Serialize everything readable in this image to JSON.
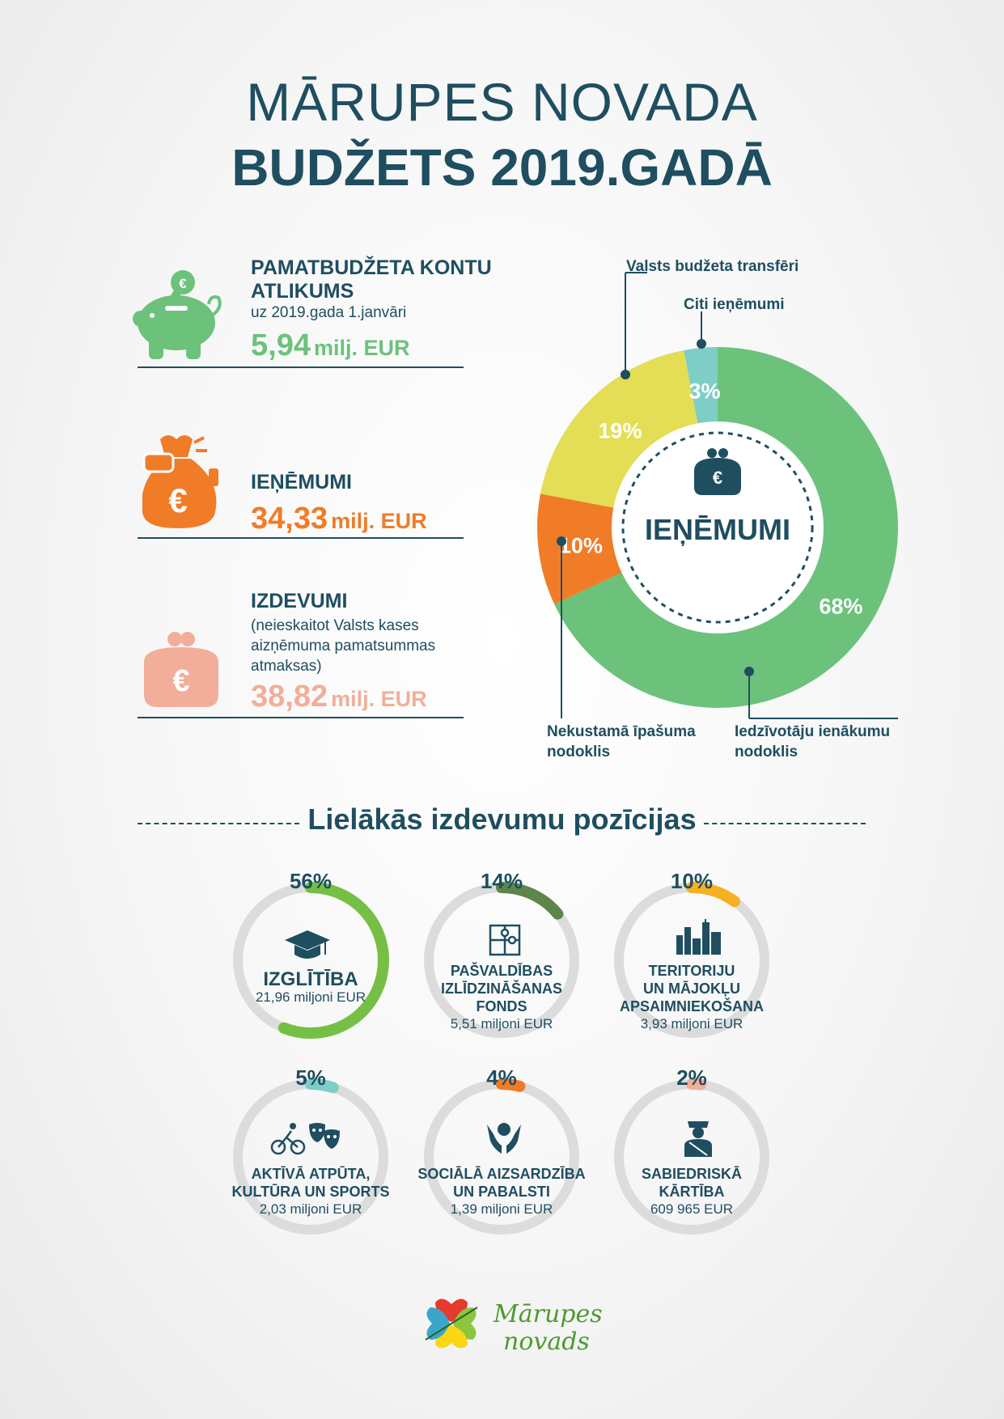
{
  "title": {
    "line1": "MĀRUPES NOVADA",
    "line2": "BUDŽETS 2019.GADĀ"
  },
  "stats": [
    {
      "head": "PAMATBUDŽETA KONTU ATLIKUMS",
      "sub": "uz 2019.gada 1.janvāri",
      "value": "5,94",
      "unit": "milj. EUR",
      "color": "#6cc27a",
      "icon": "piggy-bank-icon"
    },
    {
      "head": "IEŅĒMUMI",
      "sub": "",
      "value": "34,33",
      "unit": "milj. EUR",
      "color": "#f07c28",
      "icon": "money-bag-icon"
    },
    {
      "head": "IZDEVUMI",
      "sub": "(neieskaitot Valsts kases aizņēmuma pamatsummas atmaksas)",
      "value": "38,82",
      "unit": "milj. EUR",
      "color": "#f2ae99",
      "icon": "purse-icon"
    }
  ],
  "chart_data": [
    {
      "type": "pie",
      "center_label": "IEŅĒMUMI",
      "slices": [
        {
          "label": "Iedzīvotāju ienākumu nodoklis",
          "value": 68,
          "display": "68%",
          "color": "#6cc27a"
        },
        {
          "label": "Nekustamā īpašuma nodoklis",
          "value": 10,
          "display": "10%",
          "color": "#f07c28"
        },
        {
          "label": "Valsts budžeta transfēri",
          "value": 19,
          "display": "19%",
          "color": "#e3de55"
        },
        {
          "label": "Citi ieņēmumi",
          "value": 3,
          "display": "3%",
          "color": "#7ecdc6"
        }
      ]
    },
    {
      "type": "bar",
      "title": "Lielākās izdevumu pozīcijas",
      "items": [
        {
          "name": "IZGLĪTĪBA",
          "amount": "21,96 miljoni EUR",
          "value": 56,
          "display": "56%",
          "color": "#76bf45",
          "icon": "graduation-cap-icon"
        },
        {
          "name": "PAŠVALDĪBAS IZLĪDZINĀŠANAS FONDS",
          "amount": "5,51 miljoni EUR",
          "value": 14,
          "display": "14%",
          "color": "#5e854a",
          "icon": "puzzle-icon"
        },
        {
          "name": "TERITORIJU UN MĀJOKĻU APSAIMNIEKOŠANA",
          "amount": "3,93 miljoni EUR",
          "value": 10,
          "display": "10%",
          "color": "#f6b024",
          "icon": "city-icon"
        },
        {
          "name": "AKTĪVĀ ATPŪTA, KULTŪRA UN SPORTS",
          "amount": "2,03 miljoni EUR",
          "value": 5,
          "display": "5%",
          "color": "#7ecdc6",
          "icon": "bike-masks-icon"
        },
        {
          "name": "SOCIĀLĀ AIZSARDZĪBA UN PABALSTI",
          "amount": "1,39 miljoni EUR",
          "value": 4,
          "display": "4%",
          "color": "#f07c28",
          "icon": "hands-icon"
        },
        {
          "name": "SABIEDRISKĀ KĀRTĪBA",
          "amount": "609 965 EUR",
          "value": 2,
          "display": "2%",
          "color": "#f2ae99",
          "icon": "policeman-icon"
        }
      ]
    }
  ],
  "ring_lines": [
    [
      "IZGLĪTĪBA"
    ],
    [
      "PAŠVALDĪBAS",
      "IZLĪDZINĀŠANAS",
      "FONDS"
    ],
    [
      "TERITORIJU",
      "UN MĀJOKĻU",
      "APSAIMNIEKOŠANA"
    ],
    [
      "AKTĪVĀ ATPŪTA,",
      "KULTŪRA UN SPORTS"
    ],
    [
      "SOCIĀLĀ AIZSARDZĪBA",
      "UN PABALSTI"
    ],
    [
      "SABIEDRISKĀ",
      "KĀRTĪBA"
    ]
  ],
  "logo": {
    "line1": "Mārupes",
    "line2": "novads",
    "icon": "clover-logo-icon"
  }
}
